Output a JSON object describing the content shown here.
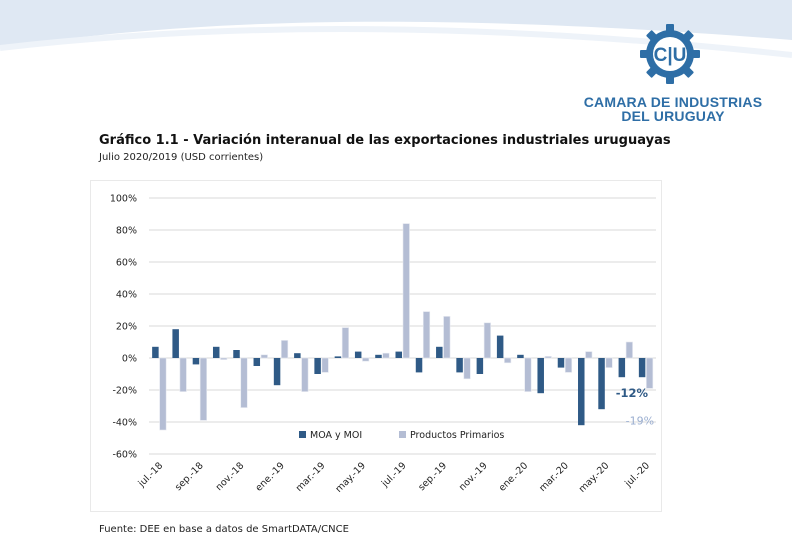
{
  "header": {
    "logo_text": "C|U",
    "org_name_line1": "CAMARA DE INDUSTRIAS",
    "org_name_line2": "DEL URUGUAY",
    "brand_color": "#2e6ea6"
  },
  "figure": {
    "title": "Gráfico 1.1 - Variación interanual de las exportaciones industriales uruguayas",
    "subtitle": "Julio 2020/2019 (USD corrientes)",
    "source": "Fuente: DEE en base a datos de SmartDATA/CNCE"
  },
  "chart_data": {
    "type": "bar",
    "title": "Variación interanual de las exportaciones industriales uruguayas",
    "xlabel": "",
    "ylabel": "",
    "ylim": [
      -60,
      100
    ],
    "yticks": [
      -60,
      -40,
      -20,
      0,
      20,
      40,
      60,
      80,
      100
    ],
    "ytick_labels": [
      "-60%",
      "-40%",
      "-20%",
      "0%",
      "20%",
      "40%",
      "60%",
      "80%",
      "100%"
    ],
    "grid": true,
    "legend_position": "bottom-center",
    "categories": [
      "jul.-18",
      "ago.-18",
      "sep.-18",
      "oct.-18",
      "nov.-18",
      "dic.-18",
      "ene.-19",
      "feb.-19",
      "mar.-19",
      "abr.-19",
      "may.-19",
      "jun.-19",
      "jul.-19",
      "ago.-19",
      "sep.-19",
      "oct.-19",
      "nov.-19",
      "dic.-19",
      "ene.-20",
      "feb.-20",
      "mar.-20",
      "abr.-20",
      "may.-20",
      "jun.-20",
      "jul.-20"
    ],
    "visible_tick_labels": [
      "jul.-18",
      "sep.-18",
      "nov.-18",
      "ene.-19",
      "mar.-19",
      "may.-19",
      "jul.-19",
      "sep.-19",
      "nov.-19",
      "ene.-20",
      "mar.-20",
      "may.-20",
      "jul.-20"
    ],
    "series": [
      {
        "name": "MOA y MOI",
        "color": "#2f5a86",
        "values": [
          7,
          18,
          -4,
          7,
          5,
          -5,
          -17,
          3,
          -10,
          1,
          4,
          2,
          4,
          -9,
          7,
          -9,
          -10,
          14,
          2,
          -22,
          -6,
          -42,
          -32,
          -12,
          -12
        ]
      },
      {
        "name": "Productos Primarios",
        "color": "#b4bdd4",
        "values": [
          -45,
          -21,
          -39,
          -1,
          -31,
          2,
          11,
          -21,
          -9,
          19,
          -2,
          3,
          84,
          29,
          26,
          -13,
          22,
          -3,
          -21,
          1,
          -9,
          4,
          -6,
          10,
          -19
        ]
      }
    ],
    "annotations": [
      {
        "text": "-12%",
        "series": "MOA y MOI",
        "category": "jul.-20",
        "color": "#2f5a86"
      },
      {
        "text": "-19%",
        "series": "Productos Primarios",
        "category": "jul.-20",
        "color": "#9aaed0"
      }
    ]
  }
}
